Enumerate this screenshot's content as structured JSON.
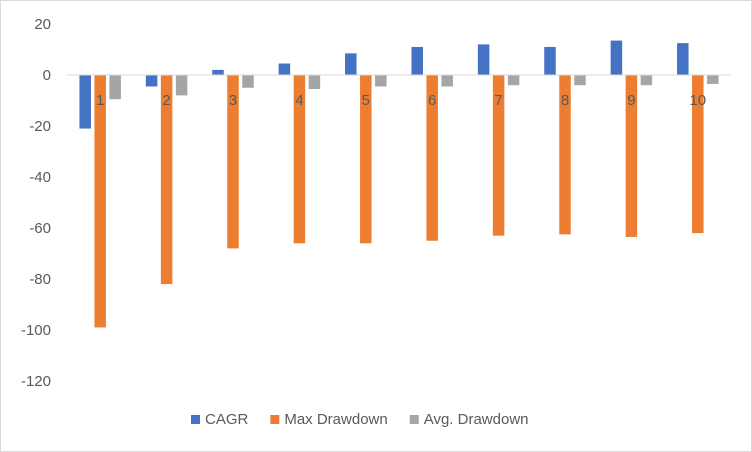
{
  "chart_data": {
    "type": "bar",
    "title": "",
    "xlabel": "",
    "ylabel": "",
    "categories": [
      "1",
      "2",
      "3",
      "4",
      "5",
      "6",
      "7",
      "8",
      "9",
      "10"
    ],
    "ylim": [
      -120,
      20
    ],
    "yticks": [
      20,
      0,
      -20,
      -40,
      -60,
      -80,
      -100,
      -120
    ],
    "grid": false,
    "legend_position": "bottom",
    "series": [
      {
        "name": "CAGR",
        "color": "#4472c4",
        "values": [
          -21,
          -4.5,
          2,
          4.5,
          8.5,
          11,
          12,
          11,
          13.5,
          12.5
        ]
      },
      {
        "name": "Max Drawdown",
        "color": "#ed7d31",
        "values": [
          -99,
          -82,
          -68,
          -66,
          -66,
          -65,
          -63,
          -62.5,
          -63.5,
          -62
        ]
      },
      {
        "name": "Avg. Drawdown",
        "color": "#a5a5a5",
        "values": [
          -9.5,
          -8,
          -5,
          -5.5,
          -4.5,
          -4.5,
          -4,
          -4,
          -4,
          -3.5
        ]
      }
    ]
  }
}
